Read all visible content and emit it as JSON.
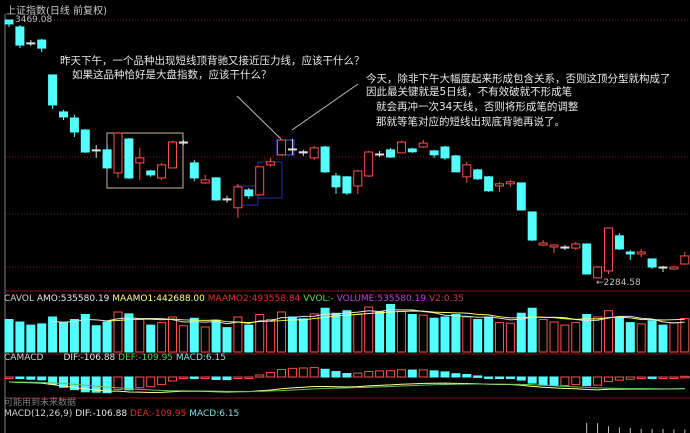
{
  "header": {
    "title": "上证指数(日线 前复权)"
  },
  "price_panel": {
    "high_label": "3469.08",
    "low_label": "←2284.58",
    "colors": {
      "up": "#ff5050",
      "down": "#54ffff",
      "cross": "#e0e0e0",
      "grid": "#7a1a1a",
      "box": "#c8b896",
      "blue_box": "#3a3aff"
    },
    "annotations": {
      "left_line1": "昨天下午，一个品种出现短线顶背驰又接近压力线，应该干什么？",
      "left_line2": "如果这品种恰好是大盘指数，应该干什么？",
      "right_line1": "今天，除非下午大幅度起来形成包含关系，否则这顶分型就构成了",
      "right_line2": "因此最关键就是5日线，不有效破就不形成笔",
      "right_line3": "就会再冲一次34天线，否则将形成笔的调整",
      "right_line4": "那就等笔对应的短线出现底背驰再说了。"
    }
  },
  "volume_panel": {
    "name": "CAVOL",
    "amo": "AMO:535580.19",
    "maamo1": "MAAMO1:442688.00",
    "maamo2": "MAAMO2:493558.84",
    "vvol": "VVOL:-",
    "volume": "VOLUME:535580.19",
    "v2": "V2:0.35"
  },
  "macd_panel": {
    "name": "CAMACD",
    "dif": "DIF:-106.88",
    "def": "DEF:-109.95",
    "macd": "MACD:6.15",
    "warning": "可能用到未来数据"
  },
  "macd2_panel": {
    "name": "MACD(12,26,9)",
    "dif": "DIF:-106.88",
    "dea": "DEA:-109.95",
    "macd": "MACD:6.15"
  },
  "chart_data": {
    "type": "candlestick",
    "price_range": [
      2284.58,
      3469.08
    ],
    "grid": "dotted horizontal",
    "ohlc": [
      [
        3469,
        3451,
        3469,
        3437
      ],
      [
        3437,
        3354,
        3446,
        3340
      ],
      [
        3364,
        3360,
        3377,
        3350
      ],
      [
        3377,
        3340,
        3382,
        3322
      ],
      [
        3217,
        3079,
        3217,
        3060
      ],
      [
        3047,
        3024,
        3056,
        3010
      ],
      [
        3019,
        2955,
        3033,
        2932
      ],
      [
        2964,
        2863,
        2969,
        2859
      ],
      [
        2873,
        2868,
        2895,
        2836
      ],
      [
        2873,
        2790,
        2895,
        2781
      ],
      [
        2767,
        2950,
        2955,
        2744
      ],
      [
        2923,
        2744,
        2927,
        2740
      ],
      [
        2813,
        2836,
        2882,
        2735
      ],
      [
        2776,
        2758,
        2781,
        2749
      ],
      [
        2744,
        2804,
        2813,
        2735
      ],
      [
        2790,
        2909,
        2914,
        2790
      ],
      [
        2904,
        2909,
        2918,
        2895
      ],
      [
        2813,
        2744,
        2827,
        2730
      ],
      [
        2721,
        2735,
        2758,
        2717
      ],
      [
        2744,
        2643,
        2749,
        2639
      ],
      [
        2648,
        2643,
        2662,
        2630
      ],
      [
        2607,
        2703,
        2717,
        2560
      ],
      [
        2689,
        2662,
        2698,
        2648
      ],
      [
        2666,
        2795,
        2795,
        2662
      ],
      [
        2804,
        2818,
        2836,
        2795
      ],
      [
        2850,
        2918,
        2923,
        2845
      ],
      [
        2877,
        2873,
        2923,
        2850
      ],
      [
        2864,
        2859,
        2873,
        2845
      ],
      [
        2836,
        2882,
        2891,
        2827
      ],
      [
        2886,
        2772,
        2891,
        2767
      ],
      [
        2753,
        2703,
        2767,
        2671
      ],
      [
        2749,
        2675,
        2753,
        2666
      ],
      [
        2707,
        2776,
        2781,
        2671
      ],
      [
        2753,
        2863,
        2868,
        2749
      ],
      [
        2854,
        2850,
        2868,
        2840
      ],
      [
        2873,
        2840,
        2882,
        2836
      ],
      [
        2859,
        2909,
        2914,
        2859
      ],
      [
        2877,
        2864,
        2882,
        2859
      ],
      [
        2886,
        2904,
        2918,
        2882
      ],
      [
        2868,
        2850,
        2873,
        2836
      ],
      [
        2886,
        2836,
        2891,
        2827
      ],
      [
        2845,
        2772,
        2850,
        2772
      ],
      [
        2749,
        2804,
        2818,
        2721
      ],
      [
        2781,
        2740,
        2786,
        2735
      ],
      [
        2749,
        2685,
        2753,
        2680
      ],
      [
        2707,
        2717,
        2726,
        2680
      ],
      [
        2717,
        2726,
        2735,
        2703
      ],
      [
        2721,
        2597,
        2721,
        2597
      ],
      [
        2588,
        2459,
        2588,
        2454
      ],
      [
        2436,
        2445,
        2459,
        2431
      ],
      [
        2427,
        2436,
        2440,
        2399
      ],
      [
        2422,
        2427,
        2436,
        2413
      ],
      [
        2422,
        2441,
        2450,
        2413
      ],
      [
        2441,
        2303,
        2441,
        2303
      ],
      [
        2285,
        2335,
        2340,
        2285
      ],
      [
        2317,
        2514,
        2514,
        2303
      ],
      [
        2478,
        2418,
        2491,
        2413
      ],
      [
        2404,
        2395,
        2413,
        2368
      ],
      [
        2395,
        2404,
        2418,
        2381
      ],
      [
        2372,
        2335,
        2372,
        2326
      ],
      [
        2335,
        2331,
        2340,
        2312
      ],
      [
        2326,
        2335,
        2340,
        2322
      ],
      [
        2349,
        2386,
        2404,
        2345
      ]
    ],
    "volume": [
      520000,
      480000,
      430000,
      450000,
      560000,
      470000,
      520000,
      600000,
      420000,
      480000,
      640000,
      610000,
      520000,
      430000,
      470000,
      560000,
      420000,
      540000,
      400000,
      510000,
      390000,
      560000,
      430000,
      600000,
      520000,
      640000,
      560000,
      530000,
      610000,
      700000,
      620000,
      660000,
      600000,
      720000,
      640000,
      760000,
      650000,
      600000,
      590000,
      540000,
      560000,
      600000,
      560000,
      520000,
      560000,
      470000,
      460000,
      620000,
      700000,
      520000,
      480000,
      430000,
      470000,
      600000,
      560000,
      660000,
      560000,
      470000,
      450000,
      500000,
      430000,
      470000,
      535580.19
    ]
  }
}
